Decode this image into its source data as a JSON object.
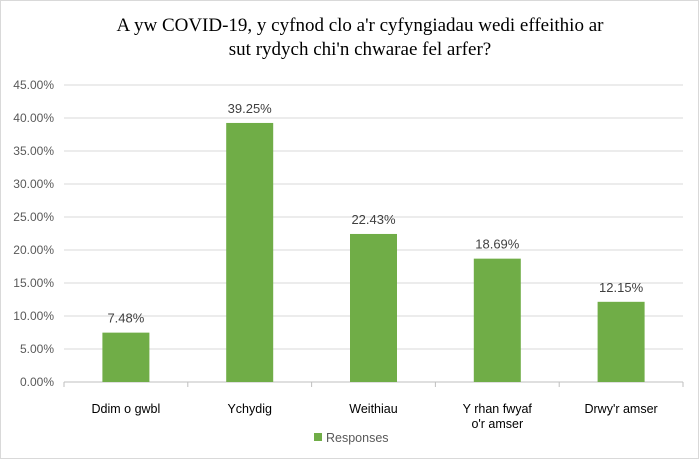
{
  "chart_data": {
    "type": "bar",
    "title_lines": [
      "A yw COVID-19, y cyfnod clo a'r cyfyngiadau wedi effeithio ar",
      "sut rydych chi'n chwarae fel arfer?"
    ],
    "categories": [
      [
        "Ddim o gwbl"
      ],
      [
        "Ychydig"
      ],
      [
        "Weithiau"
      ],
      [
        "Y rhan fwyaf",
        "o'r amser"
      ],
      [
        "Drwy'r amser"
      ]
    ],
    "series": [
      {
        "name": "Responses",
        "color": "#70ad47",
        "values": [
          7.48,
          39.25,
          22.43,
          18.69,
          12.15
        ],
        "labels": [
          "7.48%",
          "39.25%",
          "22.43%",
          "18.69%",
          "12.15%"
        ]
      }
    ],
    "ylim": [
      0,
      45
    ],
    "yticks": [
      "0.00%",
      "5.00%",
      "10.00%",
      "15.00%",
      "20.00%",
      "25.00%",
      "30.00%",
      "35.00%",
      "40.00%",
      "45.00%"
    ],
    "grid": true,
    "legend": "bottom"
  }
}
